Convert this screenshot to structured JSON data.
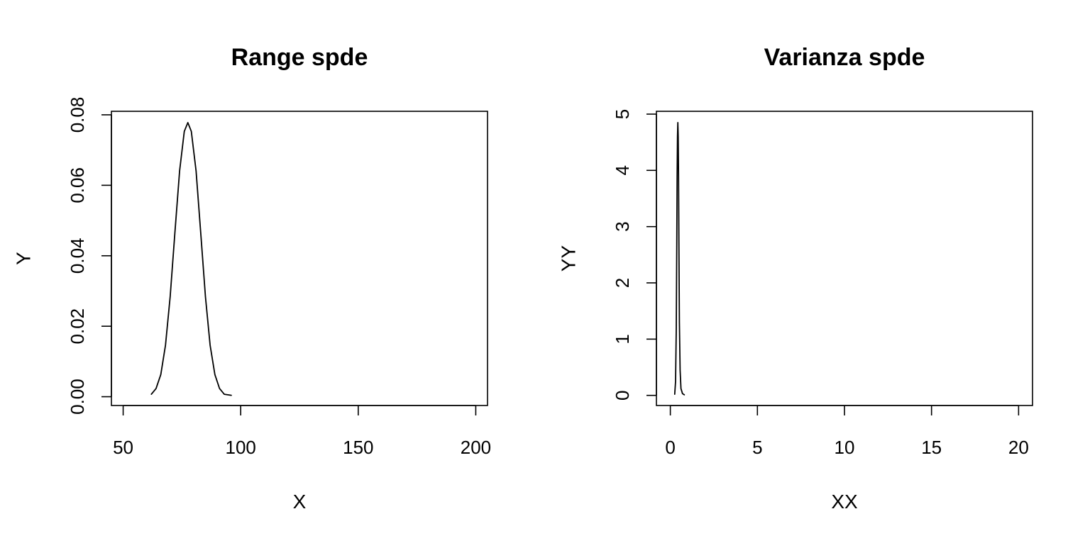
{
  "chart_data": [
    {
      "type": "line",
      "title": "Range spde",
      "xlabel": "X",
      "ylabel": "Y",
      "xlim": [
        45,
        205
      ],
      "ylim": [
        -0.0025,
        0.081
      ],
      "x_ticks": [
        50,
        100,
        150,
        200
      ],
      "x_tick_labels": [
        "50",
        "100",
        "150",
        "200"
      ],
      "y_ticks": [
        0.0,
        0.02,
        0.04,
        0.06,
        0.08
      ],
      "y_tick_labels": [
        "0.00",
        "0.02",
        "0.04",
        "0.06",
        "0.08"
      ],
      "grid": false,
      "series": [
        {
          "x": [
            62.0,
            64.0,
            66.0,
            68.0,
            70.0,
            72.0,
            74.0,
            76.0,
            77.5,
            79.0,
            81.0,
            83.0,
            85.0,
            87.0,
            89.0,
            91.0,
            93.0,
            96.0
          ],
          "y": [
            0.0007,
            0.0023,
            0.0063,
            0.0146,
            0.0284,
            0.0464,
            0.0641,
            0.0753,
            0.0778,
            0.0753,
            0.0641,
            0.0464,
            0.0284,
            0.0146,
            0.0063,
            0.0023,
            0.0007,
            0.0004
          ]
        }
      ]
    },
    {
      "type": "line",
      "title": "Varianza spde",
      "xlabel": "XX",
      "ylabel": "YY",
      "xlim": [
        -0.8,
        20.8
      ],
      "ylim": [
        -0.18,
        5.05
      ],
      "x_ticks": [
        0,
        5,
        10,
        15,
        20
      ],
      "x_tick_labels": [
        "0",
        "5",
        "10",
        "15",
        "20"
      ],
      "y_ticks": [
        0,
        1,
        2,
        3,
        4,
        5
      ],
      "y_tick_labels": [
        "0",
        "1",
        "2",
        "3",
        "4",
        "5"
      ],
      "grid": false,
      "series": [
        {
          "x": [
            0.25,
            0.3,
            0.34,
            0.37,
            0.39,
            0.41,
            0.43,
            0.45,
            0.47,
            0.49,
            0.52,
            0.56,
            0.61,
            0.7,
            0.8
          ],
          "y": [
            0.02,
            0.25,
            1.2,
            2.7,
            3.9,
            4.6,
            4.85,
            4.6,
            3.9,
            2.7,
            1.3,
            0.45,
            0.12,
            0.03,
            0.01
          ]
        }
      ]
    }
  ]
}
